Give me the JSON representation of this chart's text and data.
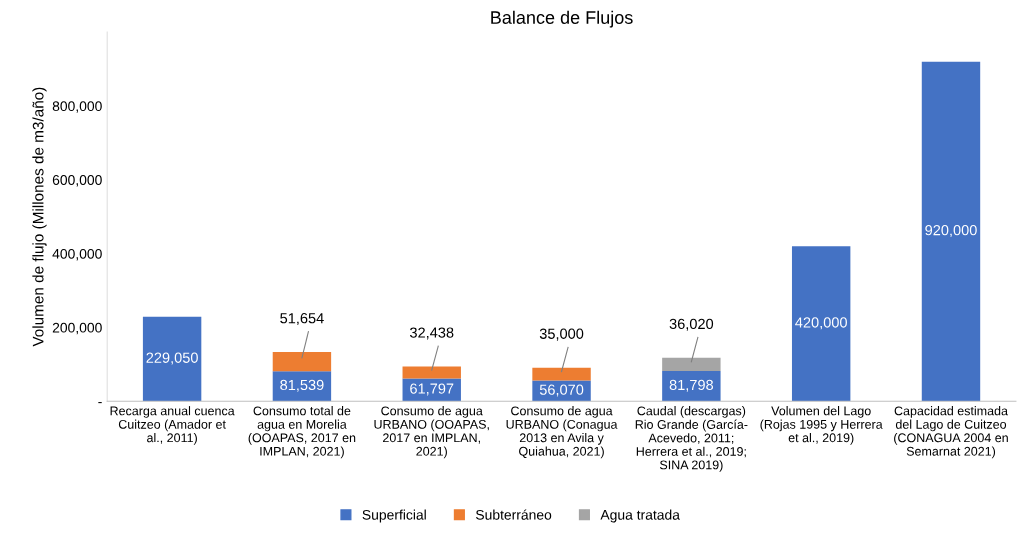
{
  "chart_data": {
    "type": "bar",
    "title": "Balance de Flujos",
    "ylabel": "Volumen de flujo (Millones de m3/año)",
    "categories": [
      "Recarga anual cuenca\nCuitzeo (Amador et\nal., 2011)",
      "Consumo total de\nagua en Morelia\n(OOAPAS, 2017 en\nIMPLAN, 2021)",
      "Consumo de agua\nURBANO (OOAPAS,\n2017 en IMPLAN,\n2021)",
      "Consumo de agua\nURBANO (Conagua\n2013 en Avila y\nQuiahua, 2021)",
      "Caudal (descargas)\nRio Grande (García-\nAcevedo, 2011;\nHerrera et al., 2019;\nSINA 2019)",
      "Volumen del Lago\n(Rojas 1995 y Herrera\net al., 2019)",
      "Capacidad estimada\ndel Lago de Cuitzeo\n(CONAGUA 2004 en\nSemarnat 2021)"
    ],
    "stacked": true,
    "series": [
      {
        "name": "Superficial",
        "color": "#4472c4",
        "values": [
          229050,
          81539,
          61797,
          56070,
          81798,
          420000,
          920000
        ],
        "value_labels": [
          "229,050",
          "81,539",
          "61,797",
          "56,070",
          "81,798",
          "420,000",
          "920,000"
        ]
      },
      {
        "name": "Subterráneo",
        "color": "#ed7d31",
        "values": [
          null,
          51654,
          32438,
          35000,
          null,
          null,
          null
        ],
        "value_labels": [
          null,
          "51,654",
          "32,438",
          "35,000",
          null,
          null,
          null
        ]
      },
      {
        "name": "Agua tratada",
        "color": "#a5a5a5",
        "values": [
          null,
          null,
          null,
          null,
          36020,
          null,
          null
        ],
        "value_labels": [
          null,
          null,
          null,
          null,
          "36,020",
          null,
          null
        ]
      }
    ],
    "ylim": [
      0,
      1000000
    ],
    "yticks": [
      {
        "value": 0,
        "label": "-"
      },
      {
        "value": 200000,
        "label": "200,000"
      },
      {
        "value": 400000,
        "label": "400,000"
      },
      {
        "value": 600000,
        "label": "600,000"
      },
      {
        "value": 800000,
        "label": "800,000"
      }
    ],
    "grid": false,
    "legend": "bottom"
  }
}
